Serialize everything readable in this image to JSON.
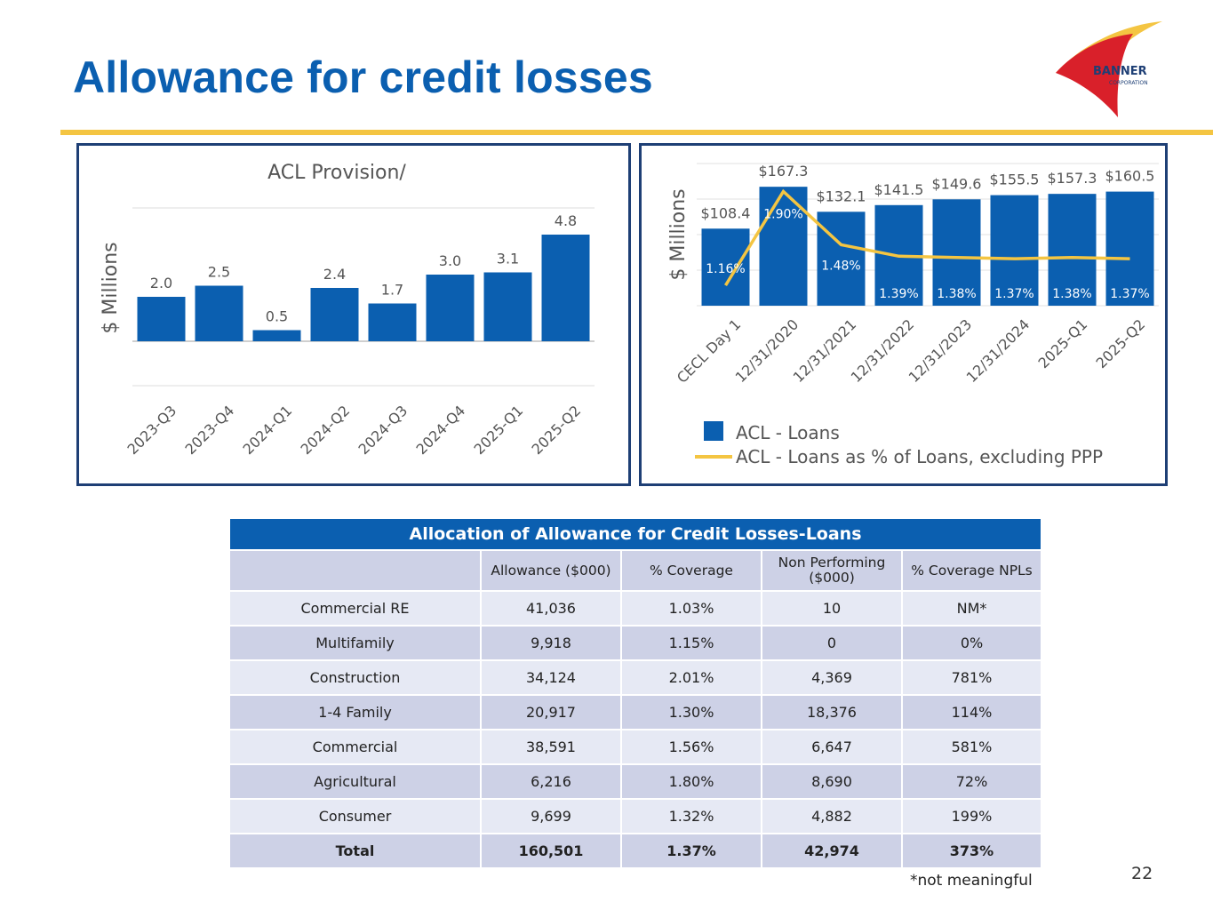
{
  "slide": {
    "title": "Allowance for credit losses",
    "page_number": "22"
  },
  "logo": {
    "name": "BANNER",
    "sub": "CORPORATION"
  },
  "colors": {
    "bar": "#0b5fb0",
    "line": "#f4c542",
    "title": "#0b5fb0",
    "border": "#1e3f75"
  },
  "chart_data": [
    {
      "type": "bar",
      "title": "ACL Provision/",
      "ylabel": "$ Millions",
      "xlabel": "",
      "ylim": [
        -2,
        6
      ],
      "grid": true,
      "categories": [
        "2023-Q3",
        "2023-Q4",
        "2024-Q1",
        "2024-Q2",
        "2024-Q3",
        "2024-Q4",
        "2025-Q1",
        "2025-Q2"
      ],
      "values": [
        2.0,
        2.5,
        0.5,
        2.4,
        1.7,
        3.0,
        3.1,
        4.8
      ],
      "labels": [
        "2.0",
        "2.5",
        "0.5",
        "2.4",
        "1.7",
        "3.0",
        "3.1",
        "4.8"
      ]
    },
    {
      "type": "bar",
      "ylabel": "$ Millions",
      "ylim": [
        0,
        200
      ],
      "grid": true,
      "categories": [
        "CECL Day 1",
        "12/31/2020",
        "12/31/2021",
        "12/31/2022",
        "12/31/2023",
        "12/31/2024",
        "2025-Q1",
        "2025-Q2"
      ],
      "series": [
        {
          "name": "ACL - Loans",
          "type": "bar",
          "values": [
            108.4,
            167.3,
            132.1,
            141.5,
            149.6,
            155.5,
            157.3,
            160.5
          ],
          "labels": [
            "$108.4",
            "$167.3",
            "$132.1",
            "$141.5",
            "$149.6",
            "$155.5",
            "$157.3",
            "$160.5"
          ]
        },
        {
          "name": "ACL - Loans as % of Loans, excluding PPP",
          "type": "line",
          "values": [
            1.16,
            1.9,
            1.48,
            1.39,
            1.38,
            1.37,
            1.38,
            1.37
          ],
          "labels": [
            "1.16%",
            "1.90%",
            "1.48%",
            "1.39%",
            "1.38%",
            "1.37%",
            "1.38%",
            "1.37%"
          ]
        }
      ],
      "legend": "bottom"
    }
  ],
  "table": {
    "caption": "Allocation of Allowance for Credit Losses-Loans",
    "headers": [
      "",
      "Allowance ($000)",
      "% Coverage",
      "Non Performing ($000)",
      "% Coverage NPLs"
    ],
    "rows": [
      [
        "Commercial RE",
        "41,036",
        "1.03%",
        "10",
        "NM*"
      ],
      [
        "Multifamily",
        "9,918",
        "1.15%",
        "0",
        "0%"
      ],
      [
        "Construction",
        "34,124",
        "2.01%",
        "4,369",
        "781%"
      ],
      [
        "1-4 Family",
        "20,917",
        "1.30%",
        "18,376",
        "114%"
      ],
      [
        "Commercial",
        "38,591",
        "1.56%",
        "6,647",
        "581%"
      ],
      [
        "Agricultural",
        "6,216",
        "1.80%",
        "8,690",
        "72%"
      ],
      [
        "Consumer",
        "9,699",
        "1.32%",
        "4,882",
        "199%"
      ],
      [
        "Total",
        "160,501",
        "1.37%",
        "42,974",
        "373%"
      ]
    ],
    "footnote": "*not meaningful"
  }
}
